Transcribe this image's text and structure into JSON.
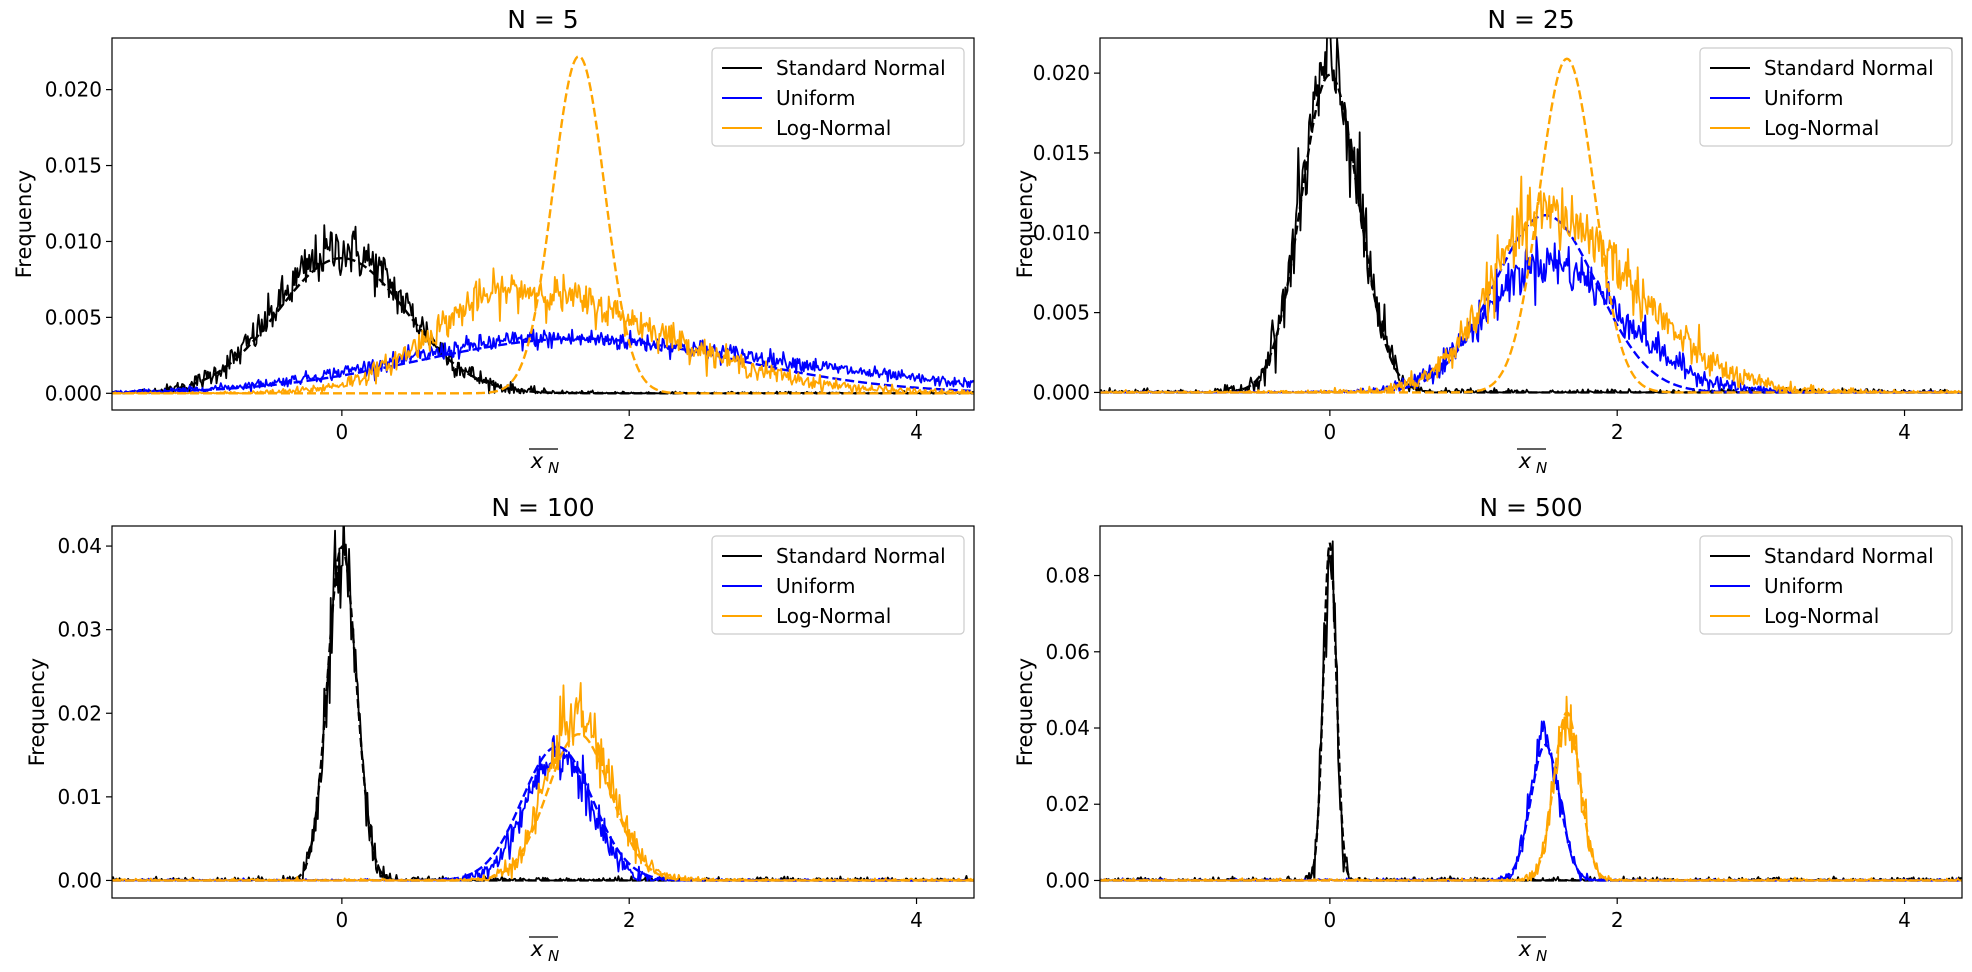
{
  "colors": {
    "Standard Normal": "#000000",
    "Uniform": "#0000ff",
    "Log-Normal": "#ffa500"
  },
  "chart_data": [
    {
      "type": "line",
      "title": "N = 5",
      "xlabel": "x_N",
      "ylabel": "Frequency",
      "xlim": [
        -1.6,
        4.4
      ],
      "ylim": [
        -0.0011,
        0.0234
      ],
      "xticks": [
        "0",
        "2",
        "4"
      ],
      "yticks": [
        "0.000",
        "0.005",
        "0.010",
        "0.015",
        "0.020"
      ],
      "legend": {
        "position": "top-right",
        "entries": [
          "Standard Normal",
          "Uniform",
          "Log-Normal"
        ]
      },
      "series": [
        {
          "name": "Standard Normal",
          "style": "histogram",
          "mu": 0.0,
          "sigma": 0.447,
          "peak": 0.0095,
          "skew": 0
        },
        {
          "name": "Standard Normal",
          "style": "fit-dashed",
          "mu": 0.0,
          "sigma": 0.447,
          "peak": 0.0089
        },
        {
          "name": "Uniform",
          "style": "histogram",
          "mu": 1.5,
          "sigma": 1.1,
          "peak": 0.0036,
          "skew": 0.8
        },
        {
          "name": "Uniform",
          "style": "fit-dashed",
          "mu": 1.65,
          "sigma": 1.1,
          "peak": 0.0036
        },
        {
          "name": "Log-Normal",
          "style": "histogram",
          "mu": 1.2,
          "sigma": 0.55,
          "peak": 0.0068,
          "skew": 1.6
        },
        {
          "name": "Log-Normal",
          "style": "fit-dashed",
          "mu": 1.65,
          "sigma": 0.18,
          "peak": 0.0222
        }
      ]
    },
    {
      "type": "line",
      "title": "N = 25",
      "xlabel": "x_N",
      "ylabel": "Frequency",
      "xlim": [
        -1.6,
        4.4
      ],
      "ylim": [
        -0.0011,
        0.0222
      ],
      "xticks": [
        "0",
        "2",
        "4"
      ],
      "yticks": [
        "0.000",
        "0.005",
        "0.010",
        "0.015",
        "0.020"
      ],
      "legend": {
        "position": "top-right",
        "entries": [
          "Standard Normal",
          "Uniform",
          "Log-Normal"
        ]
      },
      "series": [
        {
          "name": "Standard Normal",
          "style": "histogram",
          "mu": 0.0,
          "sigma": 0.2,
          "peak": 0.0203,
          "skew": 0
        },
        {
          "name": "Standard Normal",
          "style": "fit-dashed",
          "mu": 0.0,
          "sigma": 0.2,
          "peak": 0.0199
        },
        {
          "name": "Uniform",
          "style": "histogram",
          "mu": 1.5,
          "sigma": 0.42,
          "peak": 0.0082,
          "skew": 0.5
        },
        {
          "name": "Uniform",
          "style": "fit-dashed",
          "mu": 1.5,
          "sigma": 0.36,
          "peak": 0.0111
        },
        {
          "name": "Log-Normal",
          "style": "histogram",
          "mu": 1.5,
          "sigma": 0.38,
          "peak": 0.0112,
          "skew": 1.2
        },
        {
          "name": "Log-Normal",
          "style": "fit-dashed",
          "mu": 1.65,
          "sigma": 0.19,
          "peak": 0.0209
        }
      ]
    },
    {
      "type": "line",
      "title": "N = 100",
      "xlabel": "x_N",
      "ylabel": "Frequency",
      "xlim": [
        -1.6,
        4.4
      ],
      "ylim": [
        -0.0021,
        0.0424
      ],
      "xticks": [
        "0",
        "2",
        "4"
      ],
      "yticks": [
        "0.00",
        "0.01",
        "0.02",
        "0.03",
        "0.04"
      ],
      "legend": {
        "position": "top-right",
        "entries": [
          "Standard Normal",
          "Uniform",
          "Log-Normal"
        ]
      },
      "series": [
        {
          "name": "Standard Normal",
          "style": "histogram",
          "mu": 0.0,
          "sigma": 0.1,
          "peak": 0.0395,
          "skew": 0
        },
        {
          "name": "Standard Normal",
          "style": "fit-dashed",
          "mu": 0.0,
          "sigma": 0.1,
          "peak": 0.0399
        },
        {
          "name": "Uniform",
          "style": "histogram",
          "mu": 1.5,
          "sigma": 0.22,
          "peak": 0.0155,
          "skew": 0
        },
        {
          "name": "Uniform",
          "style": "fit-dashed",
          "mu": 1.5,
          "sigma": 0.245,
          "peak": 0.016
        },
        {
          "name": "Log-Normal",
          "style": "histogram",
          "mu": 1.62,
          "sigma": 0.2,
          "peak": 0.0198,
          "skew": 0.4
        },
        {
          "name": "Log-Normal",
          "style": "fit-dashed",
          "mu": 1.65,
          "sigma": 0.22,
          "peak": 0.0175
        }
      ]
    },
    {
      "type": "line",
      "title": "N = 500",
      "xlabel": "x_N",
      "ylabel": "Frequency",
      "xlim": [
        -1.6,
        4.4
      ],
      "ylim": [
        -0.0046,
        0.093
      ],
      "xticks": [
        "0",
        "2",
        "4"
      ],
      "yticks": [
        "0.00",
        "0.02",
        "0.04",
        "0.06",
        "0.08"
      ],
      "legend": {
        "position": "top-right",
        "entries": [
          "Standard Normal",
          "Uniform",
          "Log-Normal"
        ]
      },
      "series": [
        {
          "name": "Standard Normal",
          "style": "histogram",
          "mu": 0.0,
          "sigma": 0.045,
          "peak": 0.0875,
          "skew": 0
        },
        {
          "name": "Standard Normal",
          "style": "fit-dashed",
          "mu": 0.0,
          "sigma": 0.045,
          "peak": 0.0886
        },
        {
          "name": "Uniform",
          "style": "histogram",
          "mu": 1.5,
          "sigma": 0.1,
          "peak": 0.037,
          "skew": 0
        },
        {
          "name": "Uniform",
          "style": "fit-dashed",
          "mu": 1.5,
          "sigma": 0.1,
          "peak": 0.0356
        },
        {
          "name": "Log-Normal",
          "style": "histogram",
          "mu": 1.65,
          "sigma": 0.09,
          "peak": 0.043,
          "skew": 0
        },
        {
          "name": "Log-Normal",
          "style": "fit-dashed",
          "mu": 1.65,
          "sigma": 0.09,
          "peak": 0.0441
        }
      ]
    }
  ]
}
